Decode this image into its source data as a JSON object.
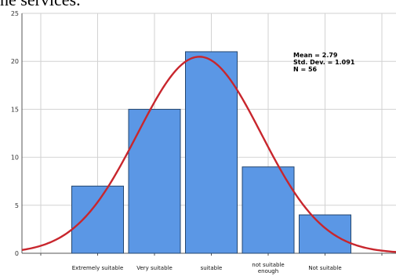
{
  "caption_fragment": "ne services.",
  "chart_data": {
    "type": "bar",
    "categories": [
      "Extremely suitable",
      "Very suitable",
      "suitable",
      "not suitable enough",
      "Not suitable"
    ],
    "values": [
      7,
      15,
      21,
      9,
      4
    ],
    "ylim": [
      0,
      25
    ],
    "yticks": [
      0,
      5,
      10,
      15,
      20,
      25
    ],
    "grid": true,
    "bar_color": "#5b97e5",
    "curve_color": "#c8262d",
    "stats": [
      "Mean = 2.79",
      "Std. Dev. = 1.091",
      "N = 56"
    ],
    "normal_curve": {
      "mean": 2.79,
      "std": 1.091,
      "n": 56
    }
  }
}
